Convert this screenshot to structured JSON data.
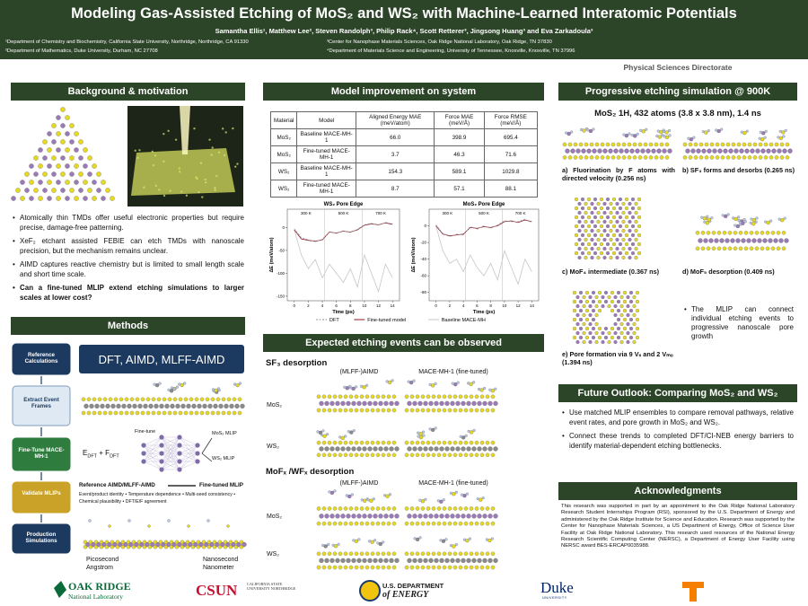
{
  "header": {
    "title": "Modeling Gas-Assisted Etching of MoS₂ and WS₂ with Machine-Learned Interatomic Potentials",
    "authors": "Samantha Ellis¹, Matthew Lee², Steven Randolph³, Philip Rack⁴, Scott Retterer³, Jingsong Huang³ and Eva Zarkadoula³",
    "affiliations": [
      "¹Department of Chemistry and Biochemistry, California State University, Northridge, Northridge, CA 91330",
      "²Department of Mathematics, Duke University, Durham, NC 27708",
      "³Center for Nanophase Materials Sciences, Oak Ridge National Laboratory, Oak Ridge, TN 37830",
      "⁴Department of Materials Science and Engineering, University of Tennessee, Knoxville, Knoxville, TN 37996"
    ],
    "directorate": "Physical Sciences Directorate"
  },
  "background": {
    "heading": "Background & motivation",
    "bullets": [
      "Atomically thin TMDs offer useful electronic properties but require precise,  damage-free patterning.",
      "XeF₂ etchant assisted FEBIE can etch TMDs with nanoscale precision, but the mechanism remains unclear.",
      "AIMD captures reactive chemistry but is limited to small length scale and short time scale.",
      "Can a fine-tuned MLIP extend etching simulations to larger scales at lower cost?"
    ]
  },
  "methods": {
    "heading": "Methods",
    "steps": [
      "Reference Calculations",
      "Extract Event Frames",
      "Fine-Tune MACE-MH-1",
      "Validate MLIPs",
      "Production Simulations"
    ],
    "box": "DFT, AIMD, MLFF-AIMD",
    "input_label": [
      "E",
      "DFT",
      " + F",
      "DFT"
    ],
    "finetune": "Fine-tune",
    "mlips": [
      "MoS₂ MLIP",
      "WS₂ MLIP"
    ],
    "compare": [
      "Reference AIMD/MLFF-AIMD",
      "Fine-tuned MLIP"
    ],
    "criteria": [
      "Event/product identity",
      "Temperature dependence",
      "Multi-seed consistency",
      "Chemical plausibility",
      "DFT/E/F agreement"
    ],
    "scales": [
      [
        "Picosecond",
        "Angstrom"
      ],
      [
        "Nanosecond",
        "Nanometer"
      ]
    ]
  },
  "model": {
    "heading": "Model improvement on system",
    "table": {
      "columns": [
        "Material",
        "Model",
        "Aligned Energy MAE (meV/atom)",
        "Force MAE (meV/Å)",
        "Force RMSE (meV/Å)"
      ],
      "rows": [
        [
          "MoS₂",
          "Baseline MACE-MH-1",
          "66.0",
          "398.9",
          "695.4"
        ],
        [
          "MoS₂",
          "Fine-tuned MACE-MH-1",
          "3.7",
          "46.3",
          "71.6"
        ],
        [
          "WS₂",
          "Baseline MACE-MH-1",
          "154.3",
          "589.1",
          "1029.8"
        ],
        [
          "WS₂",
          "Fine-tuned MACE-MH-1",
          "8.7",
          "57.1",
          "88.1"
        ]
      ]
    }
  },
  "chart_data": [
    {
      "type": "line",
      "title": "WS₂ Pore Edge",
      "x_label": "Time (ps)",
      "y_label": "ΔE (meV/atom)",
      "x": [
        0,
        1,
        2,
        3,
        4,
        5,
        6,
        7,
        8,
        9,
        10,
        11,
        12,
        13,
        14
      ],
      "series": [
        {
          "name": "DFT",
          "color": "#9a9a9a",
          "dashed": true,
          "values": [
            -3,
            -22,
            -27,
            -31,
            -26,
            -9,
            -13,
            -7,
            -11,
            -4,
            6,
            9,
            5,
            11,
            8
          ]
        },
        {
          "name": "Fine-tuned model",
          "color": "#8b1a2b",
          "values": [
            -5,
            -25,
            -28,
            -30,
            -27,
            -10,
            -12,
            -8,
            -10,
            -5,
            5,
            8,
            6,
            10,
            7
          ]
        },
        {
          "name": "Baseline MACE-MH",
          "color": "#c6c6c6",
          "values": [
            -5,
            -60,
            -90,
            -70,
            -110,
            -80,
            -100,
            -120,
            -90,
            -130,
            -60,
            -100,
            -140,
            -80,
            -110
          ]
        }
      ],
      "xlim": [
        -1,
        15
      ],
      "ylim": [
        -160,
        40
      ],
      "xticks": [
        0,
        2,
        4,
        6,
        8,
        10,
        12,
        14
      ],
      "yticks": [
        -150,
        -100,
        -50,
        0
      ],
      "annotations": [
        "300 K",
        "500 K",
        "700 K"
      ]
    },
    {
      "type": "line",
      "title": "MoS₂ Pore Edge",
      "x_label": "Time (ps)",
      "y_label": "ΔE (meV/atom)",
      "x": [
        0,
        1,
        2,
        3,
        4,
        5,
        6,
        7,
        8,
        9,
        10,
        11,
        12,
        13,
        14
      ],
      "series": [
        {
          "name": "DFT",
          "color": "#9a9a9a",
          "dashed": true,
          "values": [
            1,
            -9,
            -13,
            -10,
            -11,
            -1,
            -4,
            0,
            -3,
            1,
            6,
            5,
            5,
            8,
            4
          ]
        },
        {
          "name": "Fine-tuned model",
          "color": "#8b1a2b",
          "values": [
            0,
            -10,
            -12,
            -11,
            -10,
            -2,
            -3,
            -1,
            -2,
            0,
            5,
            6,
            4,
            7,
            5
          ]
        },
        {
          "name": "Baseline MACE-MH",
          "color": "#c6c6c6",
          "values": [
            0,
            -30,
            -45,
            -40,
            -55,
            -35,
            -50,
            -60,
            -45,
            -65,
            -30,
            -50,
            -70,
            -40,
            -55
          ]
        }
      ],
      "xlim": [
        -1,
        15
      ],
      "ylim": [
        -90,
        20
      ],
      "xticks": [
        0,
        2,
        4,
        6,
        8,
        10,
        12,
        14
      ],
      "yticks": [
        -80,
        -60,
        -40,
        -20,
        0
      ],
      "annotations": [
        "300 K",
        "500 K",
        "700 K"
      ]
    }
  ],
  "events": {
    "heading": "Expected etching events can be observed",
    "groups": [
      {
        "title": "SF₃ desorption",
        "columns": [
          "(MLFF-)AIMD",
          "MACE-MH-1 (fine-tuned)"
        ],
        "rows": [
          "MoS₂",
          "WS₂"
        ]
      },
      {
        "title": "MoFₓ /WFₓ desorption",
        "columns": [
          "(MLFF-)AIMD",
          "MACE-MH-1 (fine-tuned)"
        ],
        "rows": [
          "MoS₂",
          "WS₂"
        ]
      }
    ]
  },
  "progressive": {
    "heading": "Progressive etching simulation @ 900K",
    "subtitle": "MoS₂ 1H, 432 atoms (3.8 x 3.8 nm), 1.4 ns",
    "captions": [
      "a) Fluorination by F atoms with directed velocity (0.256 ns)",
      "b) SF₃ forms and desorbs (0.265 ns)",
      "c) MoF₄ intermediate (0.367 ns)",
      "d) MoF₅ desorption (0.409 ns)",
      "e) Pore formation via 9 Vₛ and 2 Vₘₒ (1.394 ns)"
    ],
    "note": "The MLIP can connect individual etching events to progressive nanoscale pore growth"
  },
  "outlook": {
    "heading": "Future Outlook: Comparing MoS₂ and WS₂",
    "bullets": [
      "Use matched MLIP ensembles to compare removal pathways, relative event rates, and pore growth in MoS₂ and WS₂.",
      "Connect these trends to completed DFT/CI-NEB energy barriers to identify material-dependent etching bottlenecks."
    ]
  },
  "acknowledgments": {
    "heading": "Acknowledgments",
    "text": "This research was supported in part by an appointment to the Oak Ridge National Laboratory Research Student Internships Program (RSI), sponsored by the U.S. Department of Energy and administered by the Oak Ridge Institute for Science and Education. Research was supported by the Center for Nanophase Materials Sciences, a US Department of Energy, Office of Science User Facility at Oak Ridge National Laboratory. This research used resources of the National Energy Research Scientific Computing Center (NERSC), a Department of Energy User Facility using NERSC award BES-ERCAP0035988."
  },
  "logos": {
    "ornl": [
      "OAK RIDGE",
      "National Laboratory"
    ],
    "csun": [
      "CSUN",
      "CALIFORNIA STATE UNIVERSITY NORTHRIDGE"
    ],
    "doe": [
      "U.S. DEPARTMENT",
      "of ENERGY"
    ],
    "duke": [
      "Duke",
      "UNIVERSITY"
    ]
  }
}
